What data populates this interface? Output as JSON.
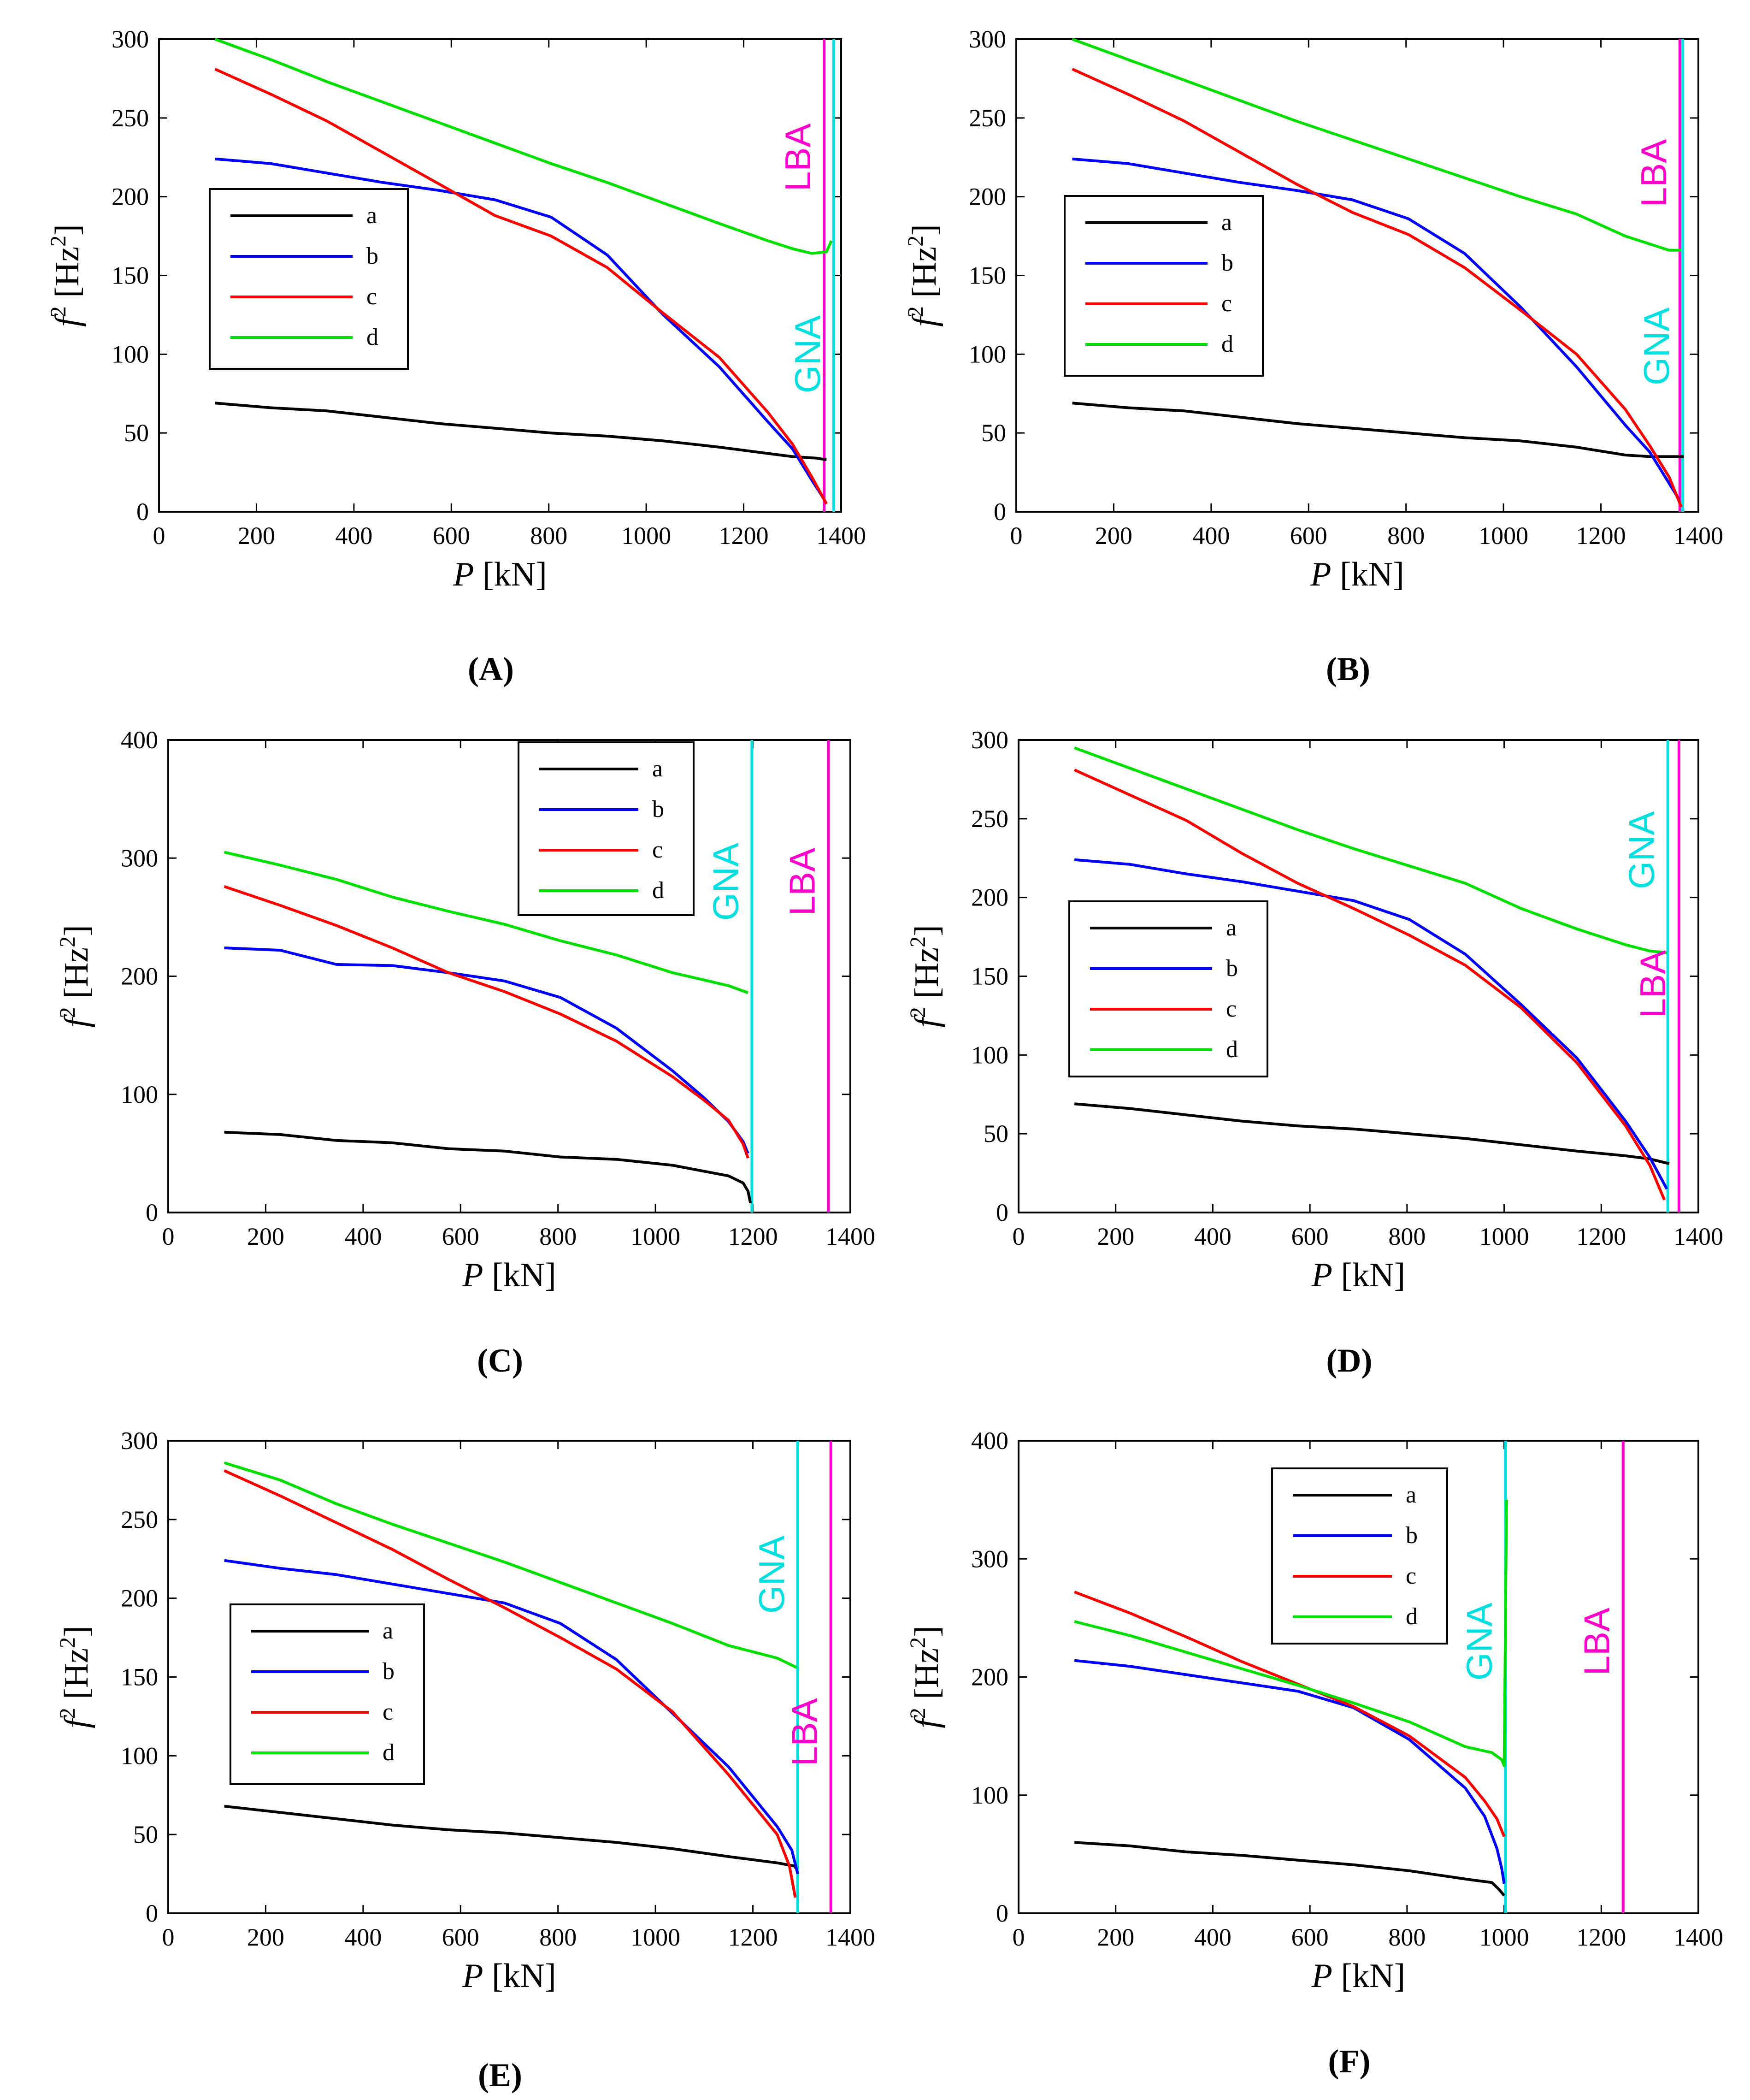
{
  "colors": {
    "a": "#000000",
    "b": "#0000ff",
    "c": "#ff0000",
    "d": "#00e000",
    "GNA": "#00e0e0",
    "LBA": "#ff00cc"
  },
  "chart_data": [
    {
      "panel": "(A)",
      "type": "line",
      "xlabel_var": "P",
      "xlabel_unit": "[kN]",
      "ylabel_var": "f",
      "ylabel_sup": "2",
      "ylabel_unit_pre": "[Hz",
      "ylabel_unit_sup": "2",
      "ylabel_unit_post": "]",
      "xlim": [
        0,
        1400
      ],
      "ylim": [
        0,
        300
      ],
      "xticks": [
        0,
        200,
        400,
        600,
        800,
        1000,
        1200,
        1400
      ],
      "yticks": [
        0,
        50,
        100,
        150,
        200,
        250,
        300
      ],
      "legend": [
        "a",
        "b",
        "c",
        "d"
      ],
      "legend_position": "middle-left",
      "series": [
        {
          "name": "a",
          "x": [
            115,
            230,
            345,
            460,
            575,
            690,
            805,
            920,
            1035,
            1150,
            1250,
            1300,
            1350,
            1370
          ],
          "y": [
            69,
            66,
            64,
            60,
            56,
            53,
            50,
            48,
            45,
            41,
            37,
            35,
            34,
            33
          ]
        },
        {
          "name": "b",
          "x": [
            115,
            230,
            345,
            460,
            575,
            690,
            805,
            920,
            1035,
            1150,
            1250,
            1300,
            1340,
            1365
          ],
          "y": [
            224,
            221,
            215,
            209,
            204,
            198,
            187,
            163,
            125,
            92,
            57,
            40,
            20,
            8
          ]
        },
        {
          "name": "c",
          "x": [
            115,
            230,
            345,
            460,
            575,
            690,
            805,
            920,
            1035,
            1150,
            1250,
            1300,
            1340,
            1370
          ],
          "y": [
            281,
            265,
            248,
            228,
            208,
            188,
            175,
            155,
            126,
            98,
            63,
            43,
            22,
            5
          ]
        },
        {
          "name": "d",
          "x": [
            115,
            230,
            345,
            460,
            575,
            690,
            805,
            920,
            1035,
            1150,
            1250,
            1300,
            1340,
            1370,
            1380
          ],
          "y": [
            300,
            287,
            273,
            260,
            247,
            234,
            221,
            209,
            196,
            183,
            172,
            167,
            164,
            165,
            172
          ]
        }
      ],
      "vlines": [
        {
          "name": "LBA",
          "x": 1365,
          "label_y": 225
        },
        {
          "name": "GNA",
          "x": 1385,
          "label_y": 100
        }
      ]
    },
    {
      "panel": "(B)",
      "type": "line",
      "xlabel_var": "P",
      "xlabel_unit": "[kN]",
      "ylabel_var": "f",
      "ylabel_sup": "2",
      "ylabel_unit_pre": "[Hz",
      "ylabel_unit_sup": "2",
      "ylabel_unit_post": "]",
      "xlim": [
        0,
        1400
      ],
      "ylim": [
        0,
        300
      ],
      "xticks": [
        0,
        200,
        400,
        600,
        800,
        1000,
        1200,
        1400
      ],
      "yticks": [
        0,
        50,
        100,
        150,
        200,
        250,
        300
      ],
      "legend": [
        "a",
        "b",
        "c",
        "d"
      ],
      "legend_position": "middle-left",
      "series": [
        {
          "name": "a",
          "x": [
            115,
            230,
            345,
            460,
            575,
            690,
            805,
            920,
            1035,
            1150,
            1250,
            1300,
            1370
          ],
          "y": [
            69,
            66,
            64,
            60,
            56,
            53,
            50,
            47,
            45,
            41,
            36,
            35,
            35
          ]
        },
        {
          "name": "b",
          "x": [
            115,
            230,
            345,
            460,
            575,
            690,
            805,
            920,
            1035,
            1150,
            1250,
            1300,
            1340,
            1360
          ],
          "y": [
            224,
            221,
            215,
            209,
            204,
            198,
            186,
            164,
            130,
            92,
            55,
            38,
            18,
            8
          ]
        },
        {
          "name": "c",
          "x": [
            115,
            230,
            345,
            460,
            575,
            690,
            805,
            920,
            1035,
            1150,
            1250,
            1300,
            1340,
            1365
          ],
          "y": [
            281,
            265,
            248,
            228,
            208,
            190,
            176,
            155,
            128,
            100,
            65,
            42,
            22,
            3
          ]
        },
        {
          "name": "d",
          "x": [
            115,
            230,
            345,
            460,
            575,
            690,
            805,
            920,
            1035,
            1150,
            1250,
            1300,
            1340,
            1365
          ],
          "y": [
            300,
            287,
            274,
            261,
            248,
            236,
            224,
            212,
            200,
            189,
            175,
            170,
            166,
            166
          ]
        }
      ],
      "vlines": [
        {
          "name": "LBA",
          "x": 1362,
          "label_y": 215
        },
        {
          "name": "GNA",
          "x": 1368,
          "label_y": 105
        }
      ]
    },
    {
      "panel": "(C)",
      "type": "line",
      "xlabel_var": "P",
      "xlabel_unit": "[kN]",
      "ylabel_var": "f",
      "ylabel_sup": "2",
      "ylabel_unit_pre": "[Hz",
      "ylabel_unit_sup": "2",
      "ylabel_unit_post": "]",
      "xlim": [
        0,
        1400
      ],
      "ylim": [
        0,
        400
      ],
      "xticks": [
        0,
        200,
        400,
        600,
        800,
        1000,
        1200,
        1400
      ],
      "yticks": [
        0,
        100,
        200,
        300,
        400
      ],
      "legend": [
        "a",
        "b",
        "c",
        "d"
      ],
      "legend_position": "top-right",
      "series": [
        {
          "name": "a",
          "x": [
            115,
            230,
            345,
            460,
            575,
            690,
            805,
            920,
            1035,
            1150,
            1180,
            1190,
            1195
          ],
          "y": [
            68,
            66,
            61,
            59,
            54,
            52,
            47,
            45,
            40,
            31,
            25,
            18,
            8
          ]
        },
        {
          "name": "b",
          "x": [
            115,
            230,
            345,
            460,
            575,
            690,
            805,
            920,
            1035,
            1100,
            1150,
            1180,
            1190
          ],
          "y": [
            224,
            222,
            210,
            209,
            203,
            196,
            182,
            156,
            120,
            97,
            77,
            60,
            50
          ]
        },
        {
          "name": "c",
          "x": [
            115,
            230,
            345,
            460,
            575,
            690,
            805,
            920,
            1035,
            1100,
            1150,
            1180,
            1190
          ],
          "y": [
            276,
            260,
            243,
            224,
            203,
            187,
            168,
            145,
            115,
            95,
            78,
            58,
            46
          ]
        },
        {
          "name": "d",
          "x": [
            115,
            230,
            345,
            460,
            575,
            690,
            805,
            920,
            1035,
            1150,
            1190
          ],
          "y": [
            305,
            294,
            282,
            267,
            255,
            244,
            230,
            218,
            203,
            192,
            186
          ]
        }
      ],
      "vlines": [
        {
          "name": "GNA",
          "x": 1198,
          "label_y": 280
        },
        {
          "name": "LBA",
          "x": 1355,
          "label_y": 280
        }
      ]
    },
    {
      "panel": "(D)",
      "type": "line",
      "xlabel_var": "P",
      "xlabel_unit": "[kN]",
      "ylabel_var": "f",
      "ylabel_sup": "2",
      "ylabel_unit_pre": "[Hz",
      "ylabel_unit_sup": "2",
      "ylabel_unit_post": "]",
      "xlim": [
        0,
        1400
      ],
      "ylim": [
        0,
        300
      ],
      "xticks": [
        0,
        200,
        400,
        600,
        800,
        1000,
        1200,
        1400
      ],
      "yticks": [
        0,
        50,
        100,
        150,
        200,
        250,
        300
      ],
      "legend": [
        "a",
        "b",
        "c",
        "d"
      ],
      "legend_position": "middle-left",
      "series": [
        {
          "name": "a",
          "x": [
            115,
            230,
            345,
            460,
            575,
            690,
            805,
            920,
            1035,
            1150,
            1250,
            1300,
            1340
          ],
          "y": [
            69,
            66,
            62,
            58,
            55,
            53,
            50,
            47,
            43,
            39,
            36,
            34,
            31
          ]
        },
        {
          "name": "b",
          "x": [
            115,
            230,
            345,
            460,
            575,
            690,
            805,
            920,
            1035,
            1150,
            1250,
            1300,
            1335
          ],
          "y": [
            224,
            221,
            215,
            210,
            204,
            198,
            186,
            164,
            132,
            98,
            58,
            35,
            15
          ]
        },
        {
          "name": "c",
          "x": [
            115,
            230,
            345,
            460,
            575,
            690,
            805,
            920,
            1035,
            1150,
            1250,
            1300,
            1330
          ],
          "y": [
            281,
            265,
            249,
            228,
            209,
            193,
            176,
            157,
            130,
            95,
            55,
            30,
            8
          ]
        },
        {
          "name": "d",
          "x": [
            115,
            230,
            345,
            460,
            575,
            690,
            805,
            920,
            1035,
            1150,
            1250,
            1300,
            1335
          ],
          "y": [
            295,
            282,
            269,
            256,
            243,
            231,
            220,
            209,
            193,
            180,
            170,
            166,
            165
          ]
        }
      ],
      "vlines": [
        {
          "name": "GNA",
          "x": 1337,
          "label_y": 230
        },
        {
          "name": "LBA",
          "x": 1360,
          "label_y": 145
        }
      ]
    },
    {
      "panel": "(E)",
      "type": "line",
      "xlabel_var": "P",
      "xlabel_unit": "[kN]",
      "ylabel_var": "f",
      "ylabel_sup": "2",
      "ylabel_unit_pre": "[Hz",
      "ylabel_unit_sup": "2",
      "ylabel_unit_post": "]",
      "xlim": [
        0,
        1400
      ],
      "ylim": [
        0,
        300
      ],
      "xticks": [
        0,
        200,
        400,
        600,
        800,
        1000,
        1200,
        1400
      ],
      "yticks": [
        0,
        50,
        100,
        150,
        200,
        250,
        300
      ],
      "legend": [
        "a",
        "b",
        "c",
        "d"
      ],
      "legend_position": "middle-left",
      "series": [
        {
          "name": "a",
          "x": [
            115,
            230,
            345,
            460,
            575,
            690,
            805,
            920,
            1035,
            1150,
            1250,
            1285,
            1290
          ],
          "y": [
            68,
            64,
            60,
            56,
            53,
            51,
            48,
            45,
            41,
            36,
            32,
            30,
            28
          ]
        },
        {
          "name": "b",
          "x": [
            115,
            230,
            345,
            460,
            575,
            690,
            805,
            920,
            1035,
            1150,
            1250,
            1280,
            1292
          ],
          "y": [
            224,
            219,
            215,
            209,
            203,
            197,
            184,
            161,
            127,
            93,
            55,
            40,
            25
          ]
        },
        {
          "name": "c",
          "x": [
            115,
            230,
            345,
            460,
            575,
            690,
            805,
            920,
            1035,
            1150,
            1250,
            1275,
            1287
          ],
          "y": [
            281,
            265,
            248,
            231,
            212,
            194,
            175,
            155,
            128,
            88,
            50,
            30,
            10
          ]
        },
        {
          "name": "d",
          "x": [
            115,
            230,
            345,
            460,
            575,
            690,
            805,
            920,
            1035,
            1150,
            1250,
            1290
          ],
          "y": [
            286,
            275,
            260,
            247,
            235,
            223,
            210,
            197,
            184,
            170,
            162,
            156
          ]
        }
      ],
      "vlines": [
        {
          "name": "GNA",
          "x": 1292,
          "label_y": 215
        },
        {
          "name": "LBA",
          "x": 1360,
          "label_y": 115
        }
      ]
    },
    {
      "panel": "(F)",
      "type": "line",
      "xlabel_var": "P",
      "xlabel_unit": "[kN]",
      "ylabel_var": "f",
      "ylabel_sup": "2",
      "ylabel_unit_pre": "[Hz",
      "ylabel_unit_sup": "2",
      "ylabel_unit_post": "]",
      "xlim": [
        0,
        1400
      ],
      "ylim": [
        0,
        400
      ],
      "xticks": [
        0,
        200,
        400,
        600,
        800,
        1000,
        1200,
        1400
      ],
      "yticks": [
        0,
        100,
        200,
        300,
        400
      ],
      "legend": [
        "a",
        "b",
        "c",
        "d"
      ],
      "legend_position": "top-center",
      "series": [
        {
          "name": "a",
          "x": [
            115,
            230,
            345,
            460,
            575,
            690,
            805,
            920,
            975,
            990,
            1000
          ],
          "y": [
            60,
            57,
            52,
            49,
            45,
            41,
            36,
            29,
            26,
            20,
            15
          ]
        },
        {
          "name": "b",
          "x": [
            115,
            230,
            345,
            460,
            575,
            690,
            805,
            920,
            960,
            985,
            995,
            1000
          ],
          "y": [
            214,
            209,
            202,
            195,
            188,
            174,
            147,
            106,
            82,
            55,
            38,
            25
          ]
        },
        {
          "name": "c",
          "x": [
            115,
            230,
            345,
            460,
            575,
            690,
            805,
            920,
            960,
            985,
            995,
            1000
          ],
          "y": [
            272,
            254,
            234,
            213,
            194,
            175,
            150,
            115,
            95,
            80,
            70,
            65
          ]
        },
        {
          "name": "d",
          "x": [
            115,
            230,
            345,
            460,
            575,
            690,
            805,
            920,
            975,
            995,
            1000,
            1005
          ],
          "y": [
            247,
            235,
            221,
            207,
            193,
            178,
            162,
            141,
            136,
            130,
            125,
            350
          ]
        }
      ],
      "vlines": [
        {
          "name": "GNA",
          "x": 1003,
          "label_y": 230
        },
        {
          "name": "LBA",
          "x": 1245,
          "label_y": 230
        }
      ]
    }
  ]
}
